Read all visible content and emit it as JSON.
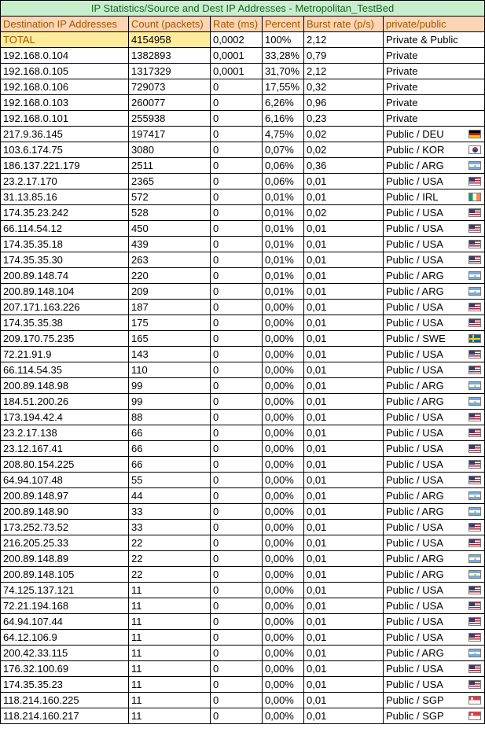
{
  "title": "IP Statistics/Source and Dest IP Addresses - Metropolitan_TestBed",
  "columns": [
    "Destination IP Addresses",
    "Count (packets)",
    "Rate (ms)",
    "Percent",
    "Burst rate (p/s)",
    "private/public"
  ],
  "total": [
    "TOTAL",
    "4154958",
    "0,0002",
    "100%",
    "2,12",
    "Private & Public"
  ],
  "rows": [
    {
      "cells": [
        "192.168.0.104",
        "1382893",
        "0,0001",
        "33,28%",
        "0,79",
        "Private"
      ],
      "flag": ""
    },
    {
      "cells": [
        "192.168.0.105",
        "1317329",
        "0,0001",
        "31,70%",
        "2,12",
        "Private"
      ],
      "flag": ""
    },
    {
      "cells": [
        "192.168.0.106",
        "729073",
        "0",
        "17,55%",
        "0,32",
        "Private"
      ],
      "flag": ""
    },
    {
      "cells": [
        "192.168.0.103",
        "260077",
        "0",
        "6,26%",
        "0,96",
        "Private"
      ],
      "flag": ""
    },
    {
      "cells": [
        "192.168.0.101",
        "255938",
        "0",
        "6,16%",
        "0,23",
        "Private"
      ],
      "flag": ""
    },
    {
      "cells": [
        "217.9.36.145",
        "197417",
        "0",
        "4,75%",
        "0,02",
        "Public / DEU"
      ],
      "flag": "deu"
    },
    {
      "cells": [
        "103.6.174.75",
        "3080",
        "0",
        "0,07%",
        "0,02",
        "Public / KOR"
      ],
      "flag": "kor"
    },
    {
      "cells": [
        "186.137.221.179",
        "2511",
        "0",
        "0,06%",
        "0,36",
        "Public / ARG"
      ],
      "flag": "arg"
    },
    {
      "cells": [
        "23.2.17.170",
        "2365",
        "0",
        "0,06%",
        "0,01",
        "Public / USA"
      ],
      "flag": "usa"
    },
    {
      "cells": [
        "31.13.85.16",
        "572",
        "0",
        "0,01%",
        "0,01",
        "Public / IRL"
      ],
      "flag": "irl"
    },
    {
      "cells": [
        "174.35.23.242",
        "528",
        "0",
        "0,01%",
        "0,02",
        "Public / USA"
      ],
      "flag": "usa"
    },
    {
      "cells": [
        "66.114.54.12",
        "450",
        "0",
        "0,01%",
        "0,01",
        "Public / USA"
      ],
      "flag": "usa"
    },
    {
      "cells": [
        "174.35.35.18",
        "439",
        "0",
        "0,01%",
        "0,01",
        "Public / USA"
      ],
      "flag": "usa"
    },
    {
      "cells": [
        "174.35.35.30",
        "263",
        "0",
        "0,01%",
        "0,01",
        "Public / USA"
      ],
      "flag": "usa"
    },
    {
      "cells": [
        "200.89.148.74",
        "220",
        "0",
        "0,01%",
        "0,01",
        "Public / ARG"
      ],
      "flag": "arg"
    },
    {
      "cells": [
        "200.89.148.104",
        "209",
        "0",
        "0,01%",
        "0,01",
        "Public / ARG"
      ],
      "flag": "arg"
    },
    {
      "cells": [
        "207.171.163.226",
        "187",
        "0",
        "0,00%",
        "0,01",
        "Public / USA"
      ],
      "flag": "usa"
    },
    {
      "cells": [
        "174.35.35.38",
        "175",
        "0",
        "0,00%",
        "0,01",
        "Public / USA"
      ],
      "flag": "usa"
    },
    {
      "cells": [
        "209.170.75.235",
        "165",
        "0",
        "0,00%",
        "0,01",
        "Public / SWE"
      ],
      "flag": "swe"
    },
    {
      "cells": [
        "72.21.91.9",
        "143",
        "0",
        "0,00%",
        "0,01",
        "Public / USA"
      ],
      "flag": "usa"
    },
    {
      "cells": [
        "66.114.54.35",
        "110",
        "0",
        "0,00%",
        "0,01",
        "Public / USA"
      ],
      "flag": "usa"
    },
    {
      "cells": [
        "200.89.148.98",
        "99",
        "0",
        "0,00%",
        "0,01",
        "Public / ARG"
      ],
      "flag": "arg"
    },
    {
      "cells": [
        "184.51.200.26",
        "99",
        "0",
        "0,00%",
        "0,01",
        "Public / ARG"
      ],
      "flag": "arg"
    },
    {
      "cells": [
        "173.194.42.4",
        "88",
        "0",
        "0,00%",
        "0,01",
        "Public / USA"
      ],
      "flag": "usa"
    },
    {
      "cells": [
        "23.2.17.138",
        "66",
        "0",
        "0,00%",
        "0,01",
        "Public / USA"
      ],
      "flag": "usa"
    },
    {
      "cells": [
        "23.12.167.41",
        "66",
        "0",
        "0,00%",
        "0,01",
        "Public / USA"
      ],
      "flag": "usa"
    },
    {
      "cells": [
        "208.80.154.225",
        "66",
        "0",
        "0,00%",
        "0,01",
        "Public / USA"
      ],
      "flag": "usa"
    },
    {
      "cells": [
        "64.94.107.48",
        "55",
        "0",
        "0,00%",
        "0,01",
        "Public / USA"
      ],
      "flag": "usa"
    },
    {
      "cells": [
        "200.89.148.97",
        "44",
        "0",
        "0,00%",
        "0,01",
        "Public / ARG"
      ],
      "flag": "arg"
    },
    {
      "cells": [
        "200.89.148.90",
        "33",
        "0",
        "0,00%",
        "0,01",
        "Public / ARG"
      ],
      "flag": "arg"
    },
    {
      "cells": [
        "173.252.73.52",
        "33",
        "0",
        "0,00%",
        "0,01",
        "Public / USA"
      ],
      "flag": "usa"
    },
    {
      "cells": [
        "216.205.25.33",
        "22",
        "0",
        "0,00%",
        "0,01",
        "Public / USA"
      ],
      "flag": "usa"
    },
    {
      "cells": [
        "200.89.148.89",
        "22",
        "0",
        "0,00%",
        "0,01",
        "Public / ARG"
      ],
      "flag": "arg"
    },
    {
      "cells": [
        "200.89.148.105",
        "22",
        "0",
        "0,00%",
        "0,01",
        "Public / ARG"
      ],
      "flag": "arg"
    },
    {
      "cells": [
        "74.125.137.121",
        "11",
        "0",
        "0,00%",
        "0,01",
        "Public / USA"
      ],
      "flag": "usa"
    },
    {
      "cells": [
        "72.21.194.168",
        "11",
        "0",
        "0,00%",
        "0,01",
        "Public / USA"
      ],
      "flag": "usa"
    },
    {
      "cells": [
        "64.94.107.44",
        "11",
        "0",
        "0,00%",
        "0,01",
        "Public / USA"
      ],
      "flag": "usa"
    },
    {
      "cells": [
        "64.12.106.9",
        "11",
        "0",
        "0,00%",
        "0,01",
        "Public / USA"
      ],
      "flag": "usa"
    },
    {
      "cells": [
        "200.42.33.115",
        "11",
        "0",
        "0,00%",
        "0,01",
        "Public / ARG"
      ],
      "flag": "arg"
    },
    {
      "cells": [
        "176.32.100.69",
        "11",
        "0",
        "0,00%",
        "0,01",
        "Public / USA"
      ],
      "flag": "usa"
    },
    {
      "cells": [
        "174.35.35.23",
        "11",
        "0",
        "0,00%",
        "0,01",
        "Public / USA"
      ],
      "flag": "usa"
    },
    {
      "cells": [
        "118.214.160.225",
        "11",
        "0",
        "0,00%",
        "0,01",
        "Public / SGP"
      ],
      "flag": "sgp"
    },
    {
      "cells": [
        "118.214.160.217",
        "11",
        "0",
        "0,00%",
        "0,01",
        "Public / SGP"
      ],
      "flag": "sgp"
    }
  ]
}
